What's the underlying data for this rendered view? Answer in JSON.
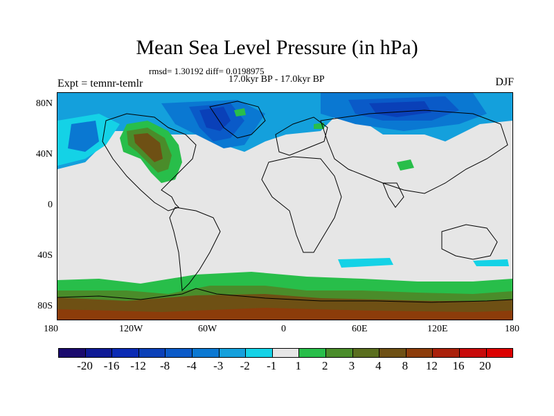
{
  "title": "Mean Sea Level Pressure (in hPa)",
  "stats_line": "rmsd= 1.30192 diff= 0.0198975",
  "period_line": "17.0kyr BP - 17.0kyr BP",
  "experiment_label": "Expt = temnr-temlr",
  "season_label": "DJF",
  "x_ticks": [
    "180",
    "120W",
    "60W",
    "0",
    "60E",
    "120E",
    "180"
  ],
  "y_ticks": [
    "80N",
    "40N",
    "0",
    "40S",
    "80S"
  ],
  "colorbar": {
    "labels": [
      "-20",
      "-16",
      "-12",
      "-8",
      "-4",
      "-3",
      "-2",
      "-1",
      "1",
      "2",
      "3",
      "4",
      "8",
      "12",
      "16",
      "20"
    ],
    "colors": [
      "#1a0a6e",
      "#0f1a96",
      "#0a2ab4",
      "#0a40b8",
      "#0a5ac8",
      "#0a78d2",
      "#14a0dc",
      "#14d2e6",
      "#e6e6e6",
      "#28be4a",
      "#4a8c2a",
      "#5a6e1e",
      "#6e5014",
      "#8c3c0a",
      "#aa200a",
      "#c80a0a",
      "#dc0000"
    ]
  },
  "map": {
    "projection": "cylindrical-equidistant",
    "lon_range": [
      -180,
      180
    ],
    "lat_range": [
      -90,
      90
    ],
    "background_color": "#e6e6e6"
  }
}
